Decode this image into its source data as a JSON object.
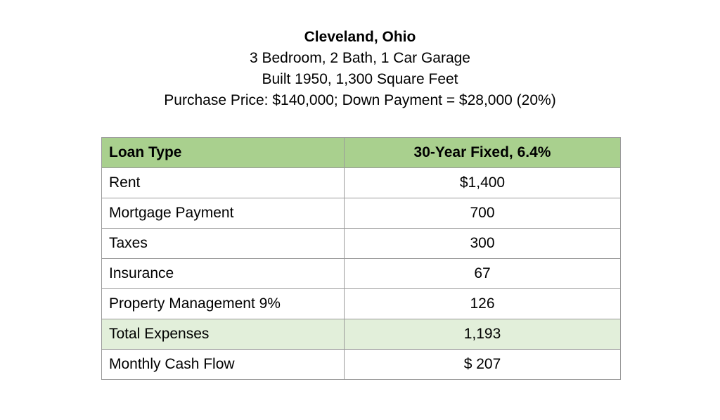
{
  "header": {
    "title": "Cleveland, Ohio",
    "line2": "3 Bedroom, 2 Bath, 1 Car Garage",
    "line3": "Built 1950, 1,300 Square Feet",
    "line4": "Purchase Price:  $140,000; Down Payment = $28,000 (20%)"
  },
  "table": {
    "header": {
      "label": "Loan Type",
      "value": "30-Year Fixed, 6.4%"
    },
    "rows": [
      {
        "label": "Rent",
        "value": "$1,400"
      },
      {
        "label": "Mortgage Payment",
        "value": "700"
      },
      {
        "label": "Taxes",
        "value": "300"
      },
      {
        "label": "Insurance",
        "value": "67"
      },
      {
        "label": "Property Management 9%",
        "value": "126"
      },
      {
        "label": "Total Expenses",
        "value": "1,193"
      },
      {
        "label": "Monthly Cash Flow",
        "value": "$ 207"
      }
    ]
  },
  "colors": {
    "header_fill": "#a9d08e",
    "highlight_row_fill": "#e2efda",
    "border": "#9a9a9a"
  }
}
